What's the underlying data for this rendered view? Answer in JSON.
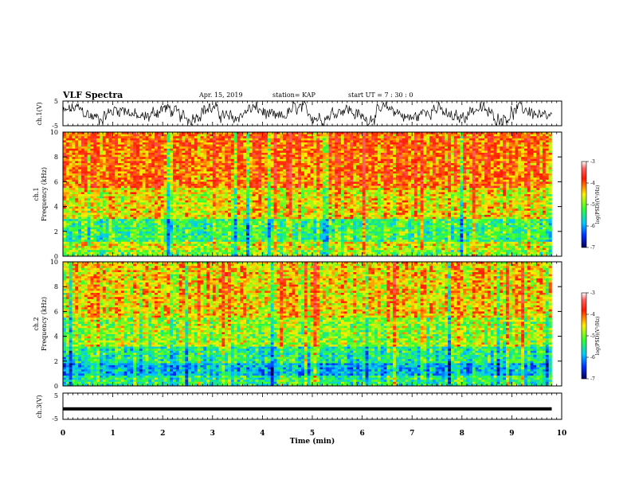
{
  "header": {
    "title": "VLF Spectra",
    "date": "Apr. 15, 2019",
    "station": "station= KAP",
    "start_time": "start  UT =   7 : 30 : 0"
  },
  "colorbar": {
    "label": "log(PSD)(V²/Hz)",
    "ticks": [
      "-3",
      "-4",
      "-5",
      "-6",
      "-7"
    ]
  },
  "chart_data": [
    {
      "type": "line",
      "panel": "ch1-waveform",
      "ylabel": "ch.1(V)",
      "ylim": [
        -5,
        5
      ],
      "yticks": [
        "5",
        "-5"
      ],
      "xlim": [
        0,
        10
      ],
      "series": [
        {
          "values_description_hidden": null
        }
      ]
    },
    {
      "type": "heatmap",
      "panel": "ch1-spectrogram",
      "ylabel": "ch.1\nFrequency (kHz)",
      "ylabel_lines": [
        "ch.1",
        "Frequency (kHz)"
      ],
      "ylim": [
        0,
        10
      ],
      "yticks": [
        "0",
        "2",
        "4",
        "6",
        "8",
        "10"
      ],
      "xlim": [
        0,
        10
      ],
      "zlim": [
        -7,
        -3
      ],
      "data_end_time_min": 9.8
    },
    {
      "type": "heatmap",
      "panel": "ch2-spectrogram",
      "ylabel_lines": [
        "ch.2",
        "Frequency (kHz)"
      ],
      "ylim": [
        0,
        10
      ],
      "yticks": [
        "0",
        "2",
        "4",
        "6",
        "8",
        "10"
      ],
      "xlim": [
        0,
        10
      ],
      "zlim": [
        -7,
        -3
      ],
      "data_end_time_min": 9.8
    },
    {
      "type": "line",
      "panel": "ch3-waveform",
      "ylabel": "ch.3(V)",
      "ylim": [
        -5,
        5
      ],
      "yticks": [
        "5",
        "-5"
      ],
      "xlim": [
        0,
        10
      ],
      "level": -1,
      "data_end_time_min": 9.8
    }
  ],
  "xaxis": {
    "label": "Time (min)",
    "ticks": [
      "0",
      "1",
      "2",
      "3",
      "4",
      "5",
      "6",
      "7",
      "8",
      "9",
      "10"
    ]
  },
  "colors": {
    "low": "#00007f",
    "mid_low": "#00bfff",
    "mid": "#40ff40",
    "mid_high": "#ffff00",
    "high": "#ff2000"
  }
}
